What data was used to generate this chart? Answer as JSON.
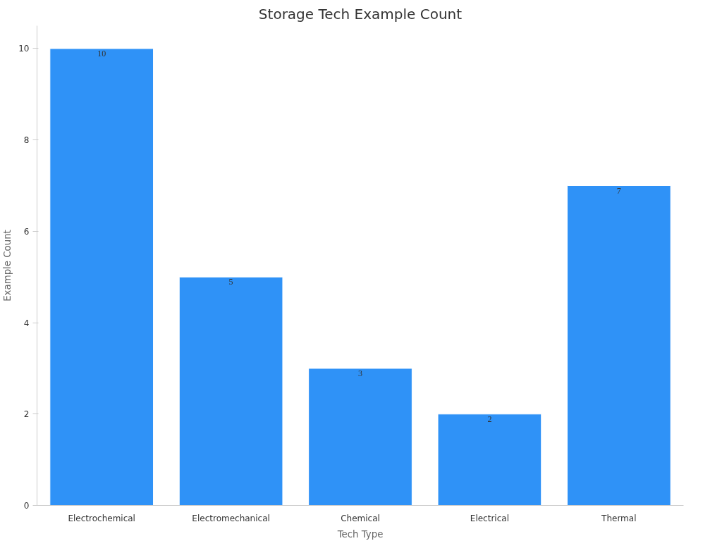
{
  "chart_data": {
    "type": "bar",
    "title": "Storage Tech Example Count",
    "xlabel": "Tech Type",
    "ylabel": "Example Count",
    "categories": [
      "Electrochemical",
      "Electromechanical",
      "Chemical",
      "Electrical",
      "Thermal"
    ],
    "values": [
      10,
      5,
      3,
      2,
      7
    ],
    "color": "#2f92f7",
    "ylim": [
      0,
      10.5
    ],
    "yticks": [
      0,
      2,
      4,
      6,
      8,
      10
    ],
    "grid": false,
    "data_labels": true
  }
}
